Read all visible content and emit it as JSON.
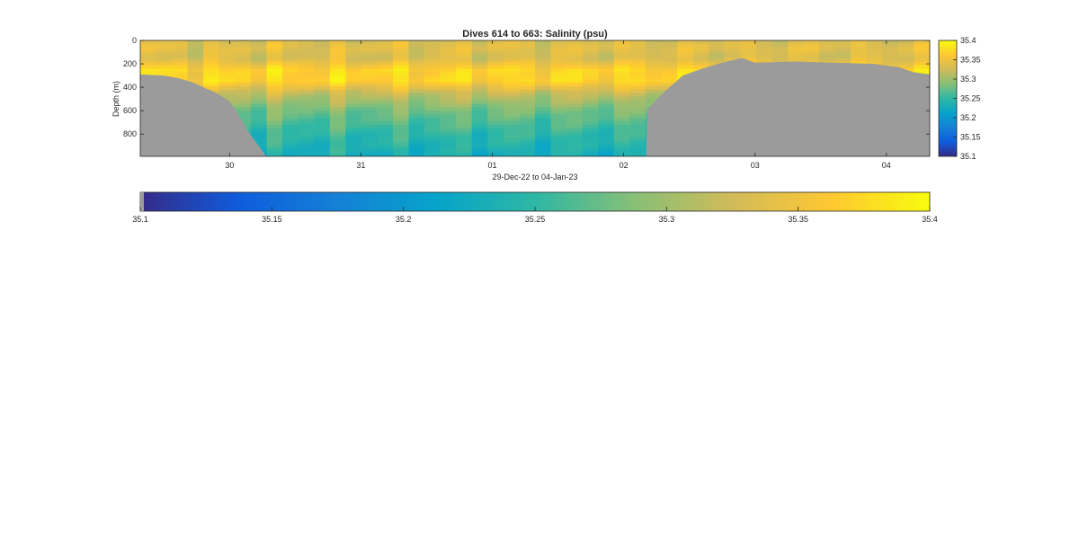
{
  "chart_data": {
    "type": "heatmap",
    "title": "Dives 614 to 663: Salinity (psu)",
    "xlabel": "29-Dec-22 to 04-Jan-23",
    "ylabel": "Depth (m)",
    "x_tick_labels": [
      "30",
      "31",
      "01",
      "02",
      "03",
      "04"
    ],
    "x_tick_days": [
      30,
      31,
      32,
      33,
      34,
      35
    ],
    "xlim_days": [
      29.32,
      35.33
    ],
    "y_tick_labels": [
      "0",
      "200",
      "400",
      "600",
      "800"
    ],
    "y_ticks": [
      0,
      200,
      400,
      600,
      800
    ],
    "ylim": [
      0,
      990
    ],
    "y_reversed": true,
    "colorbar": {
      "colormap": "parula",
      "clim": [
        35.1,
        35.4
      ],
      "tick_labels": [
        "35.1",
        "35.15",
        "35.2",
        "35.25",
        "35.3",
        "35.35",
        "35.4"
      ],
      "ticks": [
        35.1,
        35.15,
        35.2,
        35.25,
        35.3,
        35.35,
        35.4
      ]
    },
    "bathymetry_color": "#9b9b9b",
    "num_profiles": 50,
    "seafloor_depth_m": [
      {
        "day": 29.32,
        "depth": 290
      },
      {
        "day": 29.5,
        "depth": 300
      },
      {
        "day": 29.6,
        "depth": 320
      },
      {
        "day": 29.7,
        "depth": 350
      },
      {
        "day": 29.8,
        "depth": 400
      },
      {
        "day": 29.9,
        "depth": 450
      },
      {
        "day": 30.0,
        "depth": 520
      },
      {
        "day": 30.05,
        "depth": 600
      },
      {
        "day": 30.15,
        "depth": 790
      },
      {
        "day": 30.28,
        "depth": 990
      },
      {
        "day": 33.17,
        "depth": 990
      },
      {
        "day": 33.18,
        "depth": 590
      },
      {
        "day": 33.3,
        "depth": 450
      },
      {
        "day": 33.45,
        "depth": 300
      },
      {
        "day": 33.6,
        "depth": 240
      },
      {
        "day": 33.75,
        "depth": 190
      },
      {
        "day": 33.9,
        "depth": 150
      },
      {
        "day": 34.0,
        "depth": 190
      },
      {
        "day": 34.3,
        "depth": 180
      },
      {
        "day": 34.6,
        "depth": 190
      },
      {
        "day": 34.9,
        "depth": 200
      },
      {
        "day": 35.1,
        "depth": 230
      },
      {
        "day": 35.2,
        "depth": 270
      },
      {
        "day": 35.33,
        "depth": 290
      }
    ],
    "salinity_profile_psu": [
      {
        "depth": 0,
        "salinity": 35.33
      },
      {
        "depth": 60,
        "salinity": 35.34
      },
      {
        "depth": 150,
        "salinity": 35.33
      },
      {
        "depth": 250,
        "salinity": 35.37
      },
      {
        "depth": 350,
        "salinity": 35.37
      },
      {
        "depth": 450,
        "salinity": 35.32
      },
      {
        "depth": 600,
        "salinity": 35.28
      },
      {
        "depth": 800,
        "salinity": 35.25
      },
      {
        "depth": 990,
        "salinity": 35.23
      }
    ]
  }
}
